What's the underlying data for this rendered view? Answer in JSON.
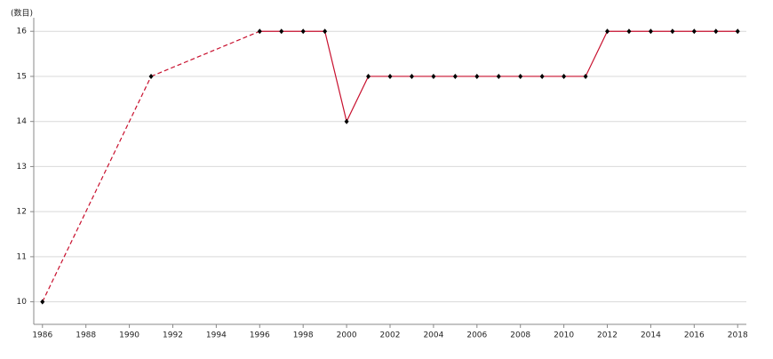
{
  "chart_data": {
    "type": "line",
    "y_label": "(数目)",
    "x": [
      1986,
      1991,
      1996,
      1997,
      1998,
      1999,
      2000,
      2001,
      2002,
      2003,
      2004,
      2005,
      2006,
      2007,
      2008,
      2009,
      2010,
      2011,
      2012,
      2013,
      2014,
      2015,
      2016,
      2017,
      2018
    ],
    "series": [
      {
        "color": "#c8102e",
        "values": [
          10,
          15,
          16,
          16,
          16,
          16,
          14,
          15,
          15,
          15,
          15,
          15,
          15,
          15,
          15,
          15,
          15,
          15,
          16,
          16,
          16,
          16,
          16,
          16,
          16
        ]
      }
    ],
    "xlim": [
      1985.6,
      2018.4
    ],
    "xticks": [
      1986,
      1988,
      1990,
      1992,
      1994,
      1996,
      1998,
      2000,
      2002,
      2004,
      2006,
      2008,
      2010,
      2012,
      2014,
      2016,
      2018
    ],
    "ylim": [
      9.5,
      16.3
    ],
    "yticks": [
      10,
      11,
      12,
      13,
      14,
      15,
      16
    ],
    "grid": true
  }
}
